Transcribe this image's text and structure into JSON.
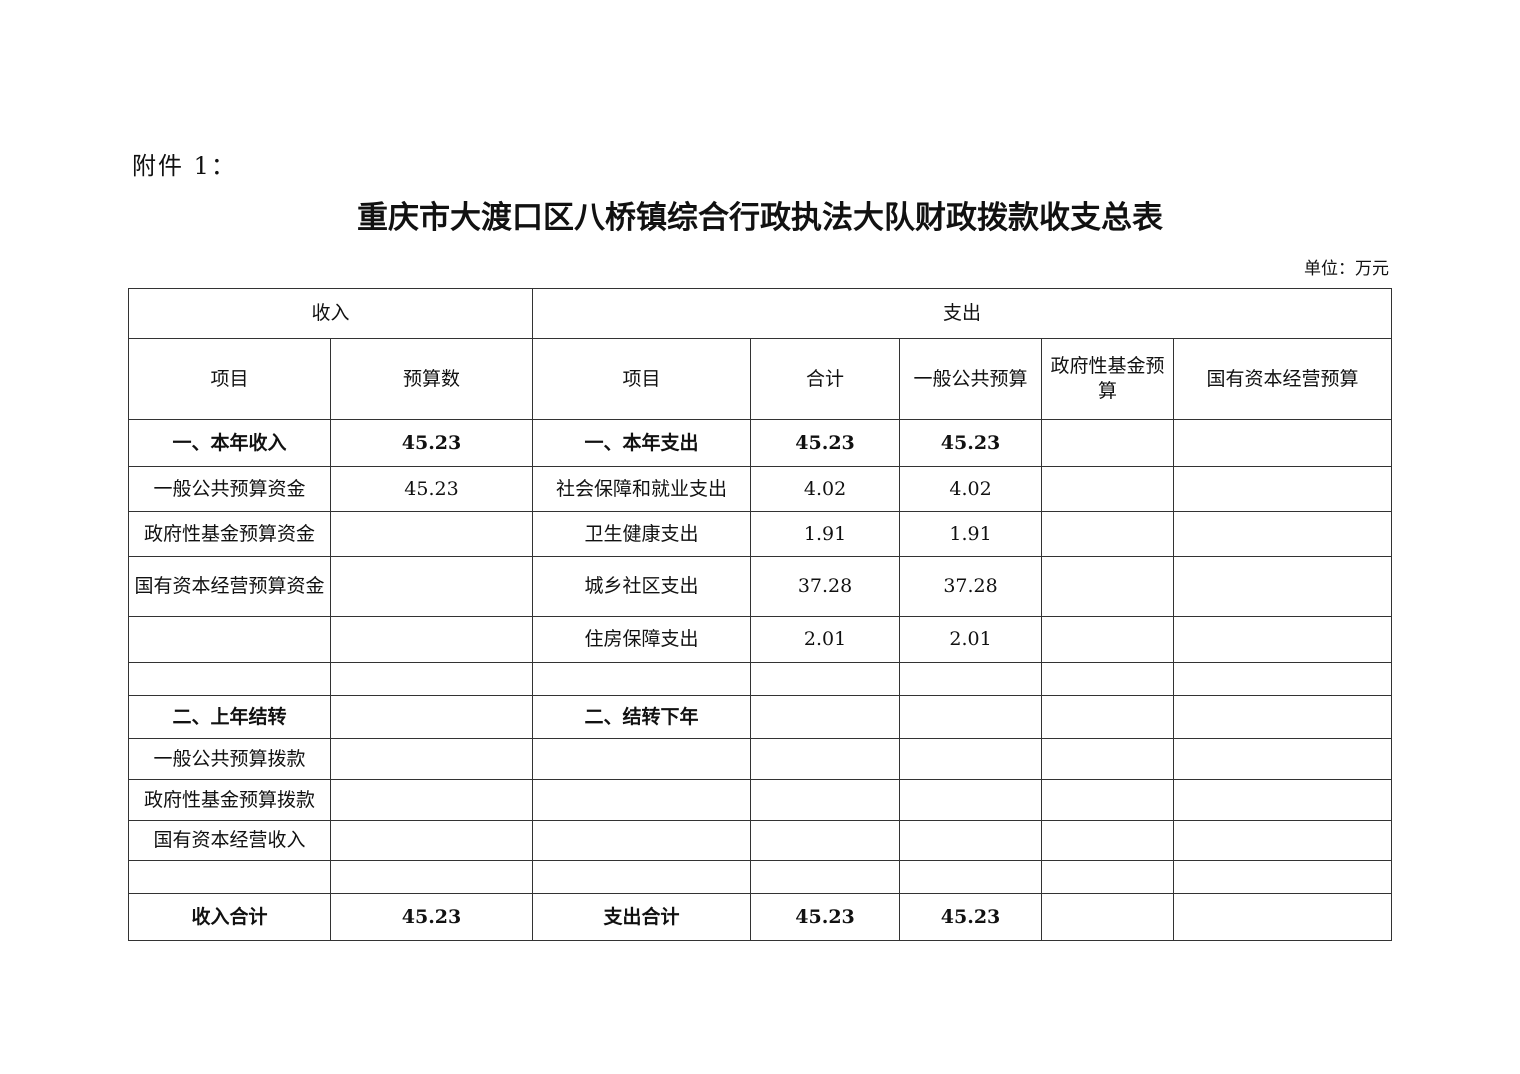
{
  "attachment_label": "附件 1：",
  "title": "重庆市大渡口区八桥镇综合行政执法大队财政拨款收支总表",
  "unit": "单位：万元",
  "table": {
    "group_headers": {
      "income": "收入",
      "expense": "支出"
    },
    "columns": [
      "项目",
      "预算数",
      "项目",
      "合计",
      "一般公共预算",
      "政府性基金预算",
      "国有资本经营预算"
    ],
    "rows": [
      {
        "bold": true,
        "cells": [
          "一、本年收入",
          "45.23",
          "一、本年支出",
          "45.23",
          "45.23",
          "",
          ""
        ]
      },
      {
        "bold": false,
        "cells": [
          "一般公共预算资金",
          "45.23",
          "社会保障和就业支出",
          "4.02",
          "4.02",
          "",
          ""
        ]
      },
      {
        "bold": false,
        "cells": [
          "政府性基金预算资金",
          "",
          "卫生健康支出",
          "1.91",
          "1.91",
          "",
          ""
        ]
      },
      {
        "bold": false,
        "cells": [
          "国有资本经营预算资金",
          "",
          "城乡社区支出",
          "37.28",
          "37.28",
          "",
          ""
        ]
      },
      {
        "bold": false,
        "cells": [
          "",
          "",
          "住房保障支出",
          "2.01",
          "2.01",
          "",
          ""
        ]
      },
      {
        "bold": false,
        "cells": [
          "",
          "",
          "",
          "",
          "",
          "",
          ""
        ]
      },
      {
        "bold": true,
        "cells": [
          "二、上年结转",
          "",
          "二、结转下年",
          "",
          "",
          "",
          ""
        ]
      },
      {
        "bold": false,
        "cells": [
          "一般公共预算拨款",
          "",
          "",
          "",
          "",
          "",
          ""
        ]
      },
      {
        "bold": false,
        "cells": [
          "政府性基金预算拨款",
          "",
          "",
          "",
          "",
          "",
          ""
        ]
      },
      {
        "bold": false,
        "cells": [
          "国有资本经营收入",
          "",
          "",
          "",
          "",
          "",
          ""
        ]
      },
      {
        "bold": false,
        "cells": [
          "",
          "",
          "",
          "",
          "",
          "",
          ""
        ]
      },
      {
        "bold": true,
        "cells": [
          "收入合计",
          "45.23",
          "支出合计",
          "45.23",
          "45.23",
          "",
          ""
        ]
      }
    ]
  }
}
